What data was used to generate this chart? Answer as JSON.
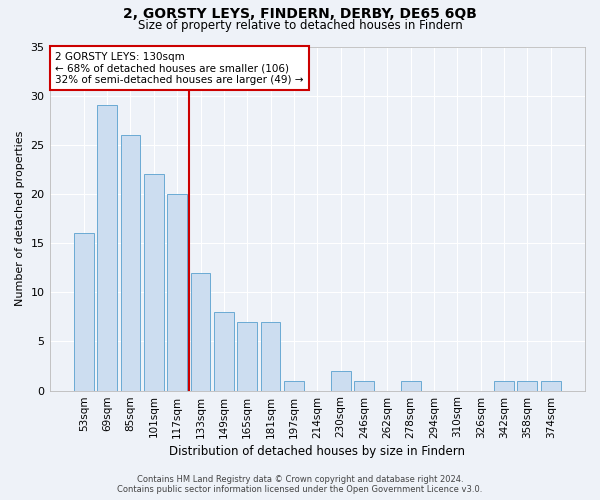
{
  "title_line1": "2, GORSTY LEYS, FINDERN, DERBY, DE65 6QB",
  "title_line2": "Size of property relative to detached houses in Findern",
  "xlabel": "Distribution of detached houses by size in Findern",
  "ylabel": "Number of detached properties",
  "categories": [
    "53sqm",
    "69sqm",
    "85sqm",
    "101sqm",
    "117sqm",
    "133sqm",
    "149sqm",
    "165sqm",
    "181sqm",
    "197sqm",
    "214sqm",
    "230sqm",
    "246sqm",
    "262sqm",
    "278sqm",
    "294sqm",
    "310sqm",
    "326sqm",
    "342sqm",
    "358sqm",
    "374sqm"
  ],
  "values": [
    16,
    29,
    26,
    22,
    20,
    12,
    8,
    7,
    7,
    1,
    0,
    2,
    1,
    0,
    1,
    0,
    0,
    0,
    1,
    1,
    1
  ],
  "bar_color": "#ccddf0",
  "bar_edgecolor": "#6aaad4",
  "vline_color": "#cc0000",
  "annotation_box_edgecolor": "#cc0000",
  "background_color": "#eef2f8",
  "grid_color": "#ffffff",
  "ylim": [
    0,
    35
  ],
  "yticks": [
    0,
    5,
    10,
    15,
    20,
    25,
    30,
    35
  ],
  "annotation_line1": "2 GORSTY LEYS: 130sqm",
  "annotation_line2": "← 68% of detached houses are smaller (106)",
  "annotation_line3": "32% of semi-detached houses are larger (49) →",
  "footnote1": "Contains HM Land Registry data © Crown copyright and database right 2024.",
  "footnote2": "Contains public sector information licensed under the Open Government Licence v3.0.",
  "title_fontsize": 10,
  "subtitle_fontsize": 8.5,
  "tick_fontsize": 7.5,
  "ylabel_fontsize": 8,
  "xlabel_fontsize": 8.5
}
